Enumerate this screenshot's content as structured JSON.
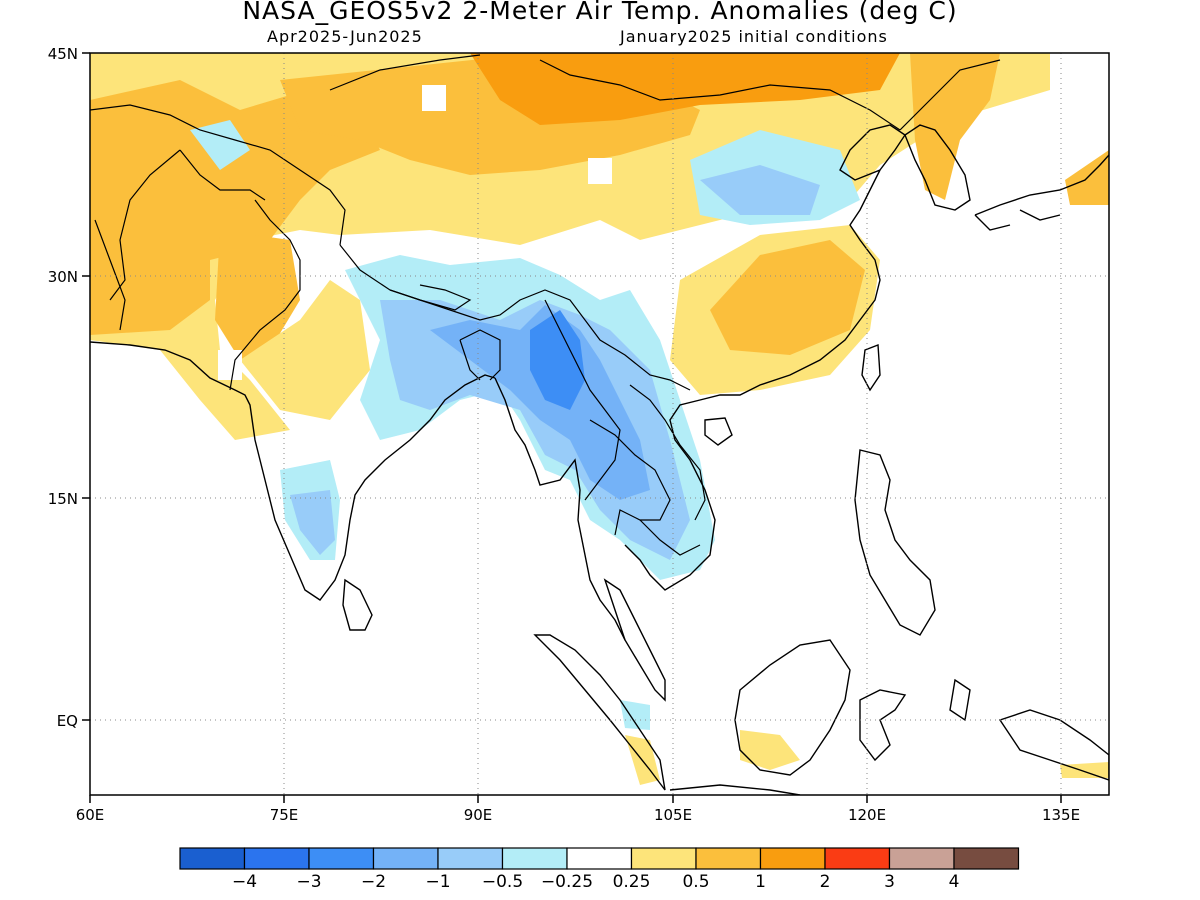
{
  "title": "NASA_GEOS5v2 2-Meter Air Temp. Anomalies (deg C)",
  "period": "Apr2025-Jun2025",
  "initial_conditions": "January2025 initial conditions",
  "map": {
    "projection": "lat-lon",
    "lon_range": [
      60,
      140
    ],
    "lat_range": [
      -6,
      45
    ],
    "lon_ticks": [
      {
        "value": 60,
        "label": "60E"
      },
      {
        "value": 75,
        "label": "75E"
      },
      {
        "value": 90,
        "label": "90E"
      },
      {
        "value": 105,
        "label": "105E"
      },
      {
        "value": 120,
        "label": "120E"
      },
      {
        "value": 135,
        "label": "135E"
      }
    ],
    "lat_ticks": [
      {
        "value": 45,
        "label": "45N"
      },
      {
        "value": 30,
        "label": "30N"
      },
      {
        "value": 15,
        "label": "15N"
      },
      {
        "value": 0,
        "label": "EQ"
      }
    ],
    "grid": "dotted",
    "ocean_values": "not shaded (land only)"
  },
  "colorbar": {
    "colors": [
      "#1a5fd0",
      "#2b74ee",
      "#3d8ef5",
      "#74b2f7",
      "#98ccf9",
      "#b3edf7",
      "#ffffff",
      "#fde47a",
      "#fbbf3c",
      "#f99d0f",
      "#fa3c14",
      "#c9a196",
      "#774c40"
    ],
    "labels": [
      "-4",
      "-3",
      "-2",
      "-1",
      "-0.5",
      "-0.25",
      "0.25",
      "0.5",
      "1",
      "2",
      "3",
      "4"
    ]
  }
}
